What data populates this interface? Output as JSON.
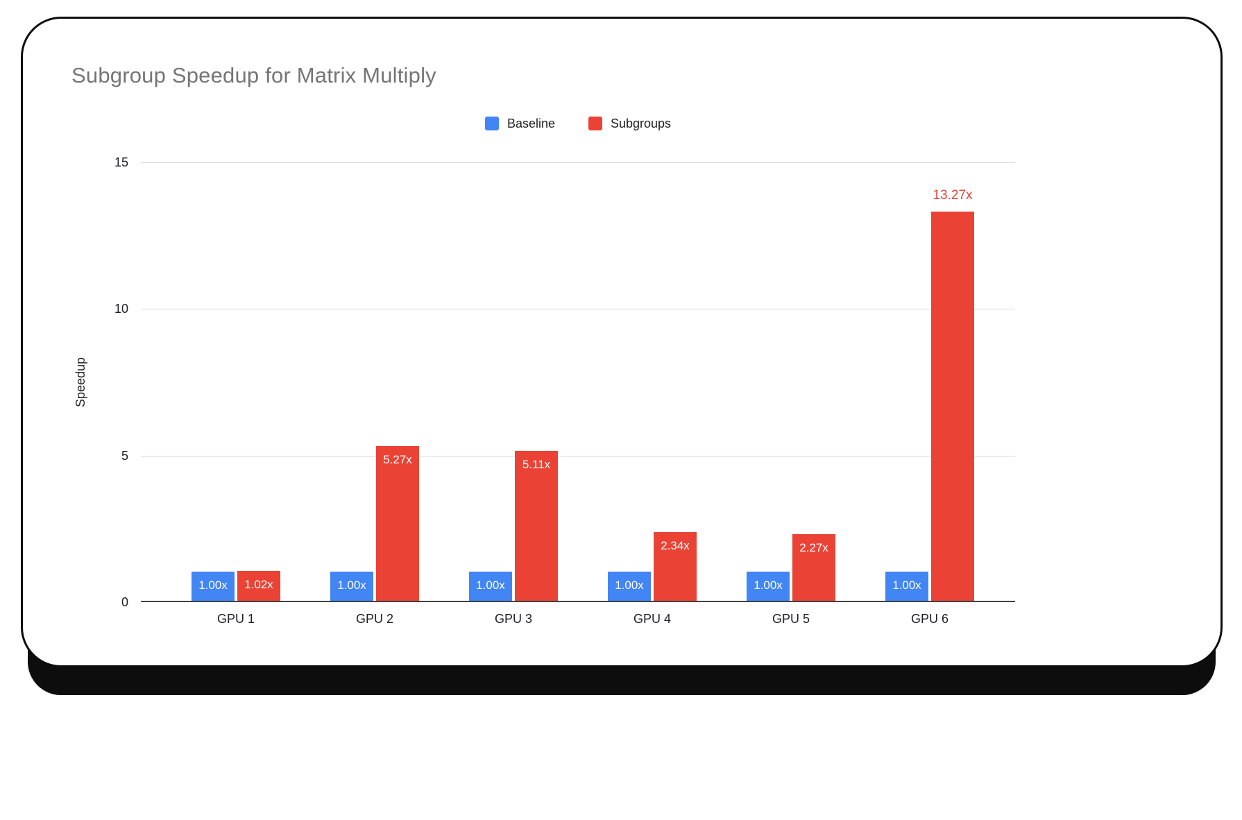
{
  "chart_data": {
    "type": "bar",
    "title": "Subgroup Speedup for Matrix Multiply",
    "xlabel": "",
    "ylabel": "Speedup",
    "categories": [
      "GPU 1",
      "GPU 2",
      "GPU 3",
      "GPU 4",
      "GPU 5",
      "GPU 6"
    ],
    "series": [
      {
        "name": "Baseline",
        "color": "#4285f4",
        "values": [
          1.0,
          1.0,
          1.0,
          1.0,
          1.0,
          1.0
        ],
        "labels": [
          "1.00x",
          "1.00x",
          "1.00x",
          "1.00x",
          "1.00x",
          "1.00x"
        ],
        "label_positions": [
          "inside",
          "inside",
          "inside",
          "inside",
          "inside",
          "inside"
        ]
      },
      {
        "name": "Subgroups",
        "color": "#ea4335",
        "values": [
          1.02,
          5.27,
          5.11,
          2.34,
          2.27,
          13.27
        ],
        "labels": [
          "1.02x",
          "5.27x",
          "5.11x",
          "2.34x",
          "2.27x",
          "13.27x"
        ],
        "label_positions": [
          "inside",
          "inside",
          "inside",
          "inside",
          "inside",
          "above"
        ]
      }
    ],
    "ylim": [
      0,
      15
    ],
    "yticks": [
      0,
      5,
      10,
      15
    ],
    "grid": true,
    "legend_position": "top-center",
    "colors": {
      "grid": "#d9d9d9",
      "axis": "#424242",
      "title_text": "#757575",
      "tick_text": "#202124",
      "card_border": "#0d0d0d"
    }
  }
}
